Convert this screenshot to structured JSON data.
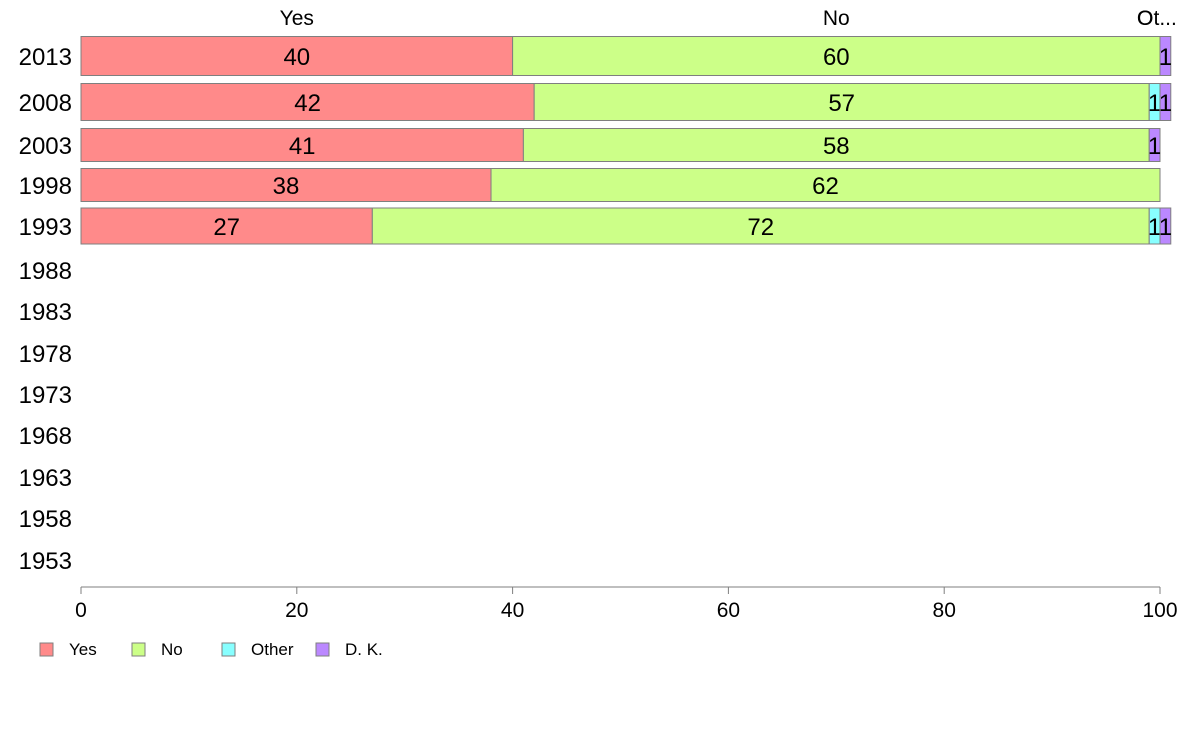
{
  "chart_data": {
    "type": "bar",
    "orientation": "horizontal",
    "stacked": true,
    "categories": [
      "2013",
      "2008",
      "2003",
      "1998",
      "1993",
      "1988",
      "1983",
      "1978",
      "1973",
      "1968",
      "1963",
      "1958",
      "1953"
    ],
    "series": [
      {
        "name": "Yes",
        "color": "#ff8a8a",
        "values": [
          40,
          42,
          41,
          38,
          27,
          null,
          null,
          null,
          null,
          null,
          null,
          null,
          null
        ]
      },
      {
        "name": "No",
        "color": "#ccff88",
        "values": [
          60,
          57,
          58,
          62,
          72,
          null,
          null,
          null,
          null,
          null,
          null,
          null,
          null
        ]
      },
      {
        "name": "Other",
        "color": "#88ffff",
        "values": [
          0,
          1,
          0,
          0,
          1,
          null,
          null,
          null,
          null,
          null,
          null,
          null,
          null
        ]
      },
      {
        "name": "D. K.",
        "color": "#bb88ff",
        "values": [
          1,
          1,
          1,
          0,
          1,
          null,
          null,
          null,
          null,
          null,
          null,
          null,
          null
        ]
      }
    ],
    "top_labels": [
      "Yes",
      "No",
      "O",
      "Ot..."
    ],
    "xlim": [
      0,
      100
    ],
    "xticks": [
      0,
      20,
      40,
      60,
      80,
      100
    ],
    "legend_position": "bottom-left",
    "grid": false
  }
}
